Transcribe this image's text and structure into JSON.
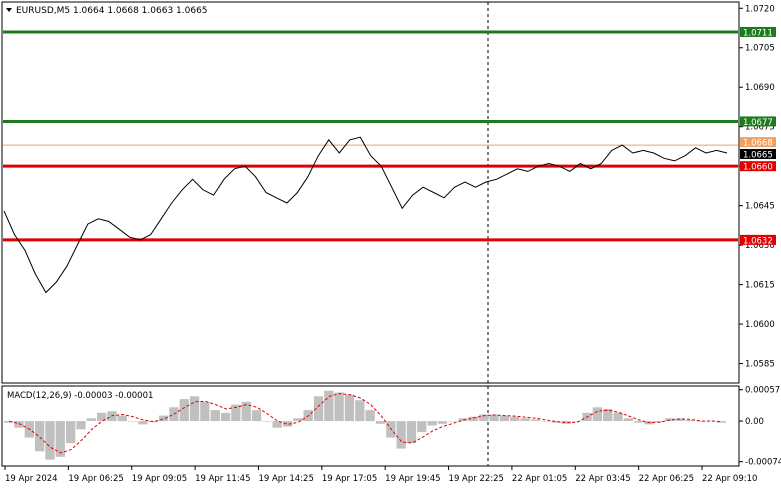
{
  "header": {
    "symbol_line": "EURUSD,M5  1.0664 1.0668 1.0663 1.0665",
    "dropdown_icon": "triangle-down-icon"
  },
  "macd": {
    "label": "MACD(12,26,9) -0.00003 -0.00001",
    "axis_labels": [
      "0.00057",
      "0.00",
      "-0.00074"
    ]
  },
  "price_axis": {
    "ticks": [
      "1.0720",
      "1.0705",
      "1.0690",
      "1.0675",
      "1.0660",
      "1.0645",
      "1.0630",
      "1.0615",
      "1.0600",
      "1.0585"
    ]
  },
  "levels": [
    {
      "name": "level-1.0711",
      "label": "1.0711",
      "value": 1.0711,
      "color": "#1e7a1e"
    },
    {
      "name": "level-1.0677",
      "label": "1.0677",
      "value": 1.0677,
      "color": "#1e7a1e"
    },
    {
      "name": "bid-line",
      "label": "1.0668",
      "value": 1.0668,
      "color": "#f0a060"
    },
    {
      "name": "current-price",
      "label": "1.0665",
      "value": 1.0665,
      "color": "#000000"
    },
    {
      "name": "level-1.0660",
      "label": "1.0660",
      "value": 1.066,
      "color": "#e00000"
    },
    {
      "name": "level-1.0632",
      "label": "1.0632",
      "value": 1.0632,
      "color": "#e00000"
    }
  ],
  "time_axis": {
    "labels": [
      "19 Apr 2024",
      "19 Apr 06:25",
      "19 Apr 09:05",
      "19 Apr 11:45",
      "19 Apr 14:25",
      "19 Apr 17:05",
      "19 Apr 19:45",
      "19 Apr 22:25",
      "22 Apr 01:05",
      "22 Apr 03:45",
      "22 Apr 06:25",
      "22 Apr 09:10"
    ]
  },
  "chart_data": {
    "type": "line",
    "series": [
      {
        "values": [
          1.0643,
          1.0634,
          1.0628,
          1.0619,
          1.0612,
          1.0616,
          1.0622,
          1.063,
          1.0638,
          1.064,
          1.0639,
          1.0636,
          1.0633,
          1.0632,
          1.0634,
          1.064,
          1.0646,
          1.0651,
          1.0655,
          1.0651,
          1.0649,
          1.0655,
          1.0659,
          1.066,
          1.0656,
          1.065,
          1.0648,
          1.0646,
          1.065,
          1.0656,
          1.0664,
          1.067,
          1.0665,
          1.067,
          1.0671,
          1.0664,
          1.066,
          1.0652,
          1.0644,
          1.0649,
          1.0652,
          1.065,
          1.0648,
          1.0652,
          1.0654,
          1.0652,
          1.0654,
          1.0655,
          1.0657,
          1.0659,
          1.0658,
          1.066,
          1.0661,
          1.066,
          1.0658,
          1.0661,
          1.0659,
          1.0661,
          1.0666,
          1.0668,
          1.0665,
          1.0666,
          1.0665,
          1.0663,
          1.0662,
          1.0664,
          1.0667,
          1.0665,
          1.0666,
          1.0665
        ]
      }
    ],
    "macd_histogram": [
      -3e-05,
      -0.00012,
      -0.0003,
      -0.00055,
      -0.0007,
      -0.00065,
      -0.0004,
      -0.00015,
      5e-05,
      0.00015,
      0.00018,
      0.0001,
      0.0,
      -6e-05,
      -2e-05,
      0.0001,
      0.00025,
      0.0004,
      0.00045,
      0.00035,
      0.0002,
      0.00015,
      0.0003,
      0.00035,
      0.0002,
      0.0,
      -0.00012,
      -0.0001,
      5e-05,
      0.0002,
      0.00045,
      0.00055,
      0.00052,
      0.00048,
      0.00038,
      0.0002,
      -5e-05,
      -0.0003,
      -0.0005,
      -0.0004,
      -0.0002,
      -8e-05,
      -5e-05,
      0.0,
      5e-05,
      8e-05,
      0.00012,
      0.00012,
      0.0001,
      8e-05,
      5e-05,
      3e-05,
      0.0,
      -3e-05,
      -5e-05,
      0.0,
      0.00015,
      0.00025,
      0.00022,
      0.00015,
      5e-05,
      -3e-05,
      -6e-05,
      -2e-05,
      5e-05,
      5e-05,
      2e-05,
      -1e-05,
      1e-05,
      -3e-05
    ],
    "macd_signal": [
      0.0,
      -5e-05,
      -0.00015,
      -0.0003,
      -0.00048,
      -0.00058,
      -0.00052,
      -0.00035,
      -0.00015,
      0.0,
      0.0001,
      0.00012,
      8e-05,
      2e-05,
      -1e-05,
      4e-05,
      0.00013,
      0.00025,
      0.00035,
      0.00036,
      0.0003,
      0.00022,
      0.00025,
      0.0003,
      0.00025,
      0.00013,
      0.0,
      -6e-05,
      -2e-05,
      0.0001,
      0.00028,
      0.00045,
      0.0005,
      0.00048,
      0.00042,
      0.0003,
      0.0001,
      -0.00015,
      -0.00038,
      -0.0004,
      -0.0003,
      -0.00018,
      -0.0001,
      -4e-05,
      2e-05,
      6e-05,
      0.0001,
      0.00011,
      0.0001,
      9e-05,
      7e-05,
      5e-05,
      2e-05,
      -1e-05,
      -3e-05,
      -2e-05,
      8e-05,
      0.00018,
      0.0002,
      0.00016,
      9e-05,
      2e-05,
      -3e-05,
      -2e-05,
      2e-05,
      4e-05,
      3e-05,
      0.0,
      0.0,
      -1e-05
    ],
    "ylim": [
      1.0578,
      1.0722
    ],
    "macd_ylim": [
      -0.0008,
      0.00062
    ],
    "grid": false,
    "legend": "none"
  },
  "colors": {
    "price": "#000000",
    "histogram": "#c0c0c0",
    "signal": "#e00000",
    "separator": "#000000",
    "axis_bg": "#ffffff"
  }
}
